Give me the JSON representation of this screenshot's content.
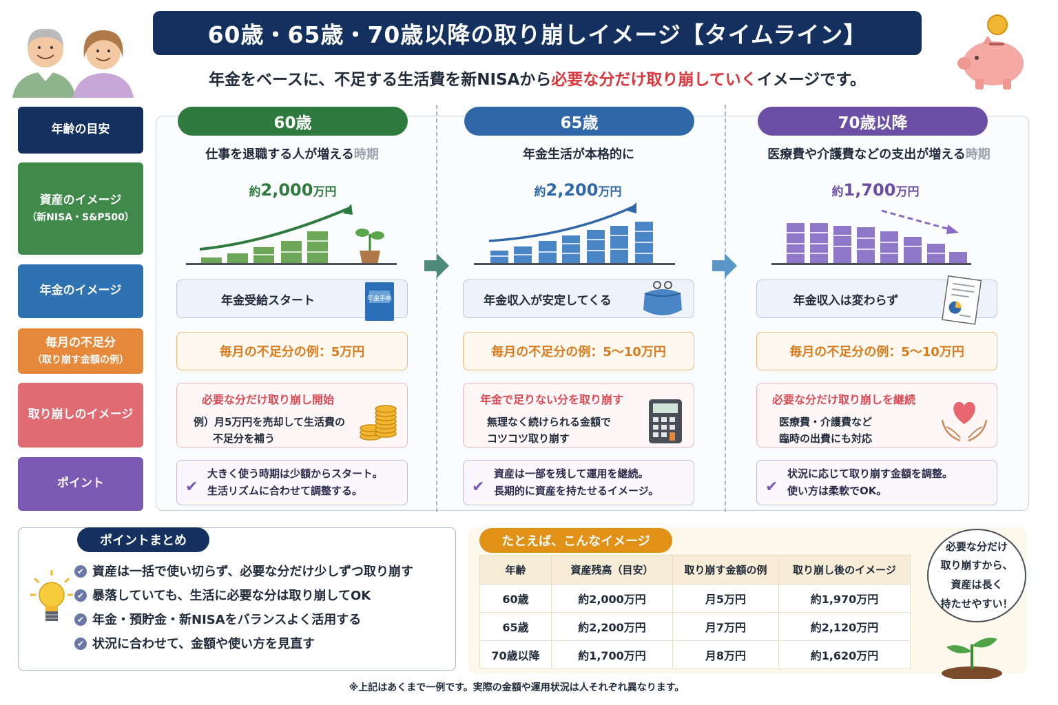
{
  "header": {
    "title": "60歳・65歳・70歳以降の取り崩しイメージ【タイムライン】",
    "subtitle_pre": "年金をベースに、不足する生活費を新NISAから",
    "subtitle_highlight": "必要な分だけ取り崩していく",
    "subtitle_post": "イメージです。"
  },
  "row_labels": {
    "age": "年齢の目安",
    "assets": "資産のイメージ",
    "assets_sub": "（新NISA・S&P500）",
    "pension": "年金のイメージ",
    "shortfall": "毎月の不足分",
    "shortfall_sub": "（取り崩す金額の例）",
    "withdraw": "取り崩しのイメージ",
    "point": "ポイント"
  },
  "columns": [
    {
      "age": "60歳",
      "desc_main": "仕事を退職する人が増える",
      "desc_tail": "時期",
      "amount_prefix": "約",
      "amount_value": "2,000",
      "amount_unit": "万円",
      "pension": "年金受給スタート",
      "shortfall": "毎月の不足分の例：5万円",
      "withdraw_title": "必要な分だけ取り崩し開始",
      "withdraw_line1": "例）月5万円を売却して生活費の",
      "withdraw_line2": "不足分を補う",
      "point_line1": "大きく使う時期は少額からスタート。",
      "point_line2": "生活リズムに合わせて調整する。"
    },
    {
      "age": "65歳",
      "desc_main": "年金生活が本格的に",
      "desc_tail": "",
      "amount_prefix": "約",
      "amount_value": "2,200",
      "amount_unit": "万円",
      "pension": "年金収入が安定してくる",
      "shortfall": "毎月の不足分の例：5〜10万円",
      "withdraw_title": "年金で足りない分を取り崩す",
      "withdraw_line1": "無理なく続けられる金額で",
      "withdraw_line2": "コツコツ取り崩す",
      "point_line1": "資産は一部を残して運用を継続。",
      "point_line2": "長期的に資産を持たせるイメージ。"
    },
    {
      "age": "70歳以降",
      "desc_main": "医療費や介護費などの支出が増える",
      "desc_tail": "時期",
      "amount_prefix": "約",
      "amount_value": "1,700",
      "amount_unit": "万円",
      "pension": "年金収入は変わらず",
      "shortfall": "毎月の不足分の例：5〜10万円",
      "withdraw_title": "必要な分だけ取り崩しを継続",
      "withdraw_line1": "医療費・介護費など",
      "withdraw_line2": "臨時の出費にも対応",
      "point_line1": "状況に応じて取り崩す金額を調整。",
      "point_line2": "使い方は柔軟でOK。"
    }
  ],
  "book_text": "年金手帳",
  "summary": {
    "heading": "ポイントまとめ",
    "items": [
      "資産は一括で使い切らず、必要な分だけ少しずつ取り崩す",
      "暴落していても、生活に必要な分は取り崩してOK",
      "年金・預貯金・新NISAをバランスよく活用する",
      "状況に合わせて、金額や使い方を見直す"
    ]
  },
  "example": {
    "heading": "たとえば、こんなイメージ",
    "headers": [
      "年齢",
      "資産残高（目安）",
      "取り崩す金額の例",
      "取り崩し後のイメージ"
    ],
    "rows": [
      [
        "60歳",
        "約2,000万円",
        "月5万円",
        "約1,970万円"
      ],
      [
        "65歳",
        "約2,200万円",
        "月7万円",
        "約2,120万円"
      ],
      [
        "70歳以降",
        "約1,700万円",
        "月8万円",
        "約1,620万円"
      ]
    ]
  },
  "bubble": {
    "line1": "必要な分だけ",
    "line2": "取り崩すから、",
    "line3": "資産は長く",
    "line4": "持たせやすい！"
  },
  "footnote": "※上記はあくまで一例です。実際の金額や運用状況は人それぞれ異なります。",
  "colors": {
    "navy": "#14305e",
    "green": "#2f7a3e",
    "blue": "#2f67a8",
    "purple": "#6b4fa5",
    "orange": "#e5883a",
    "pink": "#e06b73"
  },
  "icons": [
    "seniors-icon",
    "piggy-bank-icon",
    "seedling-pot-icon",
    "pension-book-icon",
    "purse-icon",
    "document-chart-icon",
    "coins-icon",
    "calculator-icon",
    "heart-hands-icon",
    "check-icon",
    "lightbulb-icon",
    "sprout-icon"
  ]
}
